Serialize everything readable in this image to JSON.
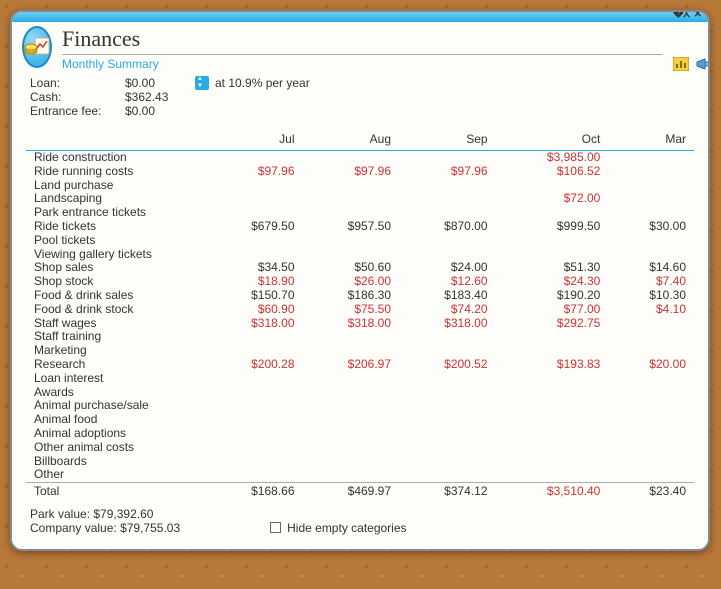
{
  "window": {
    "title": "Finances",
    "subtitle": "Monthly Summary"
  },
  "summary": {
    "loan_label": "Loan:",
    "loan_value": "$0.00",
    "loan_rate_text": "at  10.9% per year",
    "cash_label": "Cash:",
    "cash_value": "$362.43",
    "entrance_label": "Entrance fee:",
    "entrance_value": "$0.00"
  },
  "table": {
    "months": [
      "Jul",
      "Aug",
      "Sep",
      "Oct",
      "Mar"
    ],
    "rows": [
      {
        "label": "Ride construction",
        "cells": [
          null,
          null,
          null,
          {
            "v": "$3,985.00",
            "neg": true
          },
          null
        ]
      },
      {
        "label": "Ride running costs",
        "cells": [
          {
            "v": "$97.96",
            "neg": true
          },
          {
            "v": "$97.96",
            "neg": true
          },
          {
            "v": "$97.96",
            "neg": true
          },
          {
            "v": "$106.52",
            "neg": true
          },
          null
        ]
      },
      {
        "label": "Land purchase",
        "cells": [
          null,
          null,
          null,
          null,
          null
        ]
      },
      {
        "label": "Landscaping",
        "cells": [
          null,
          null,
          null,
          {
            "v": "$72.00",
            "neg": true
          },
          null
        ]
      },
      {
        "label": "Park entrance tickets",
        "cells": [
          null,
          null,
          null,
          null,
          null
        ]
      },
      {
        "label": "Ride tickets",
        "cells": [
          {
            "v": "$679.50"
          },
          {
            "v": "$957.50"
          },
          {
            "v": "$870.00"
          },
          {
            "v": "$999.50"
          },
          {
            "v": "$30.00"
          }
        ]
      },
      {
        "label": "Pool tickets",
        "cells": [
          null,
          null,
          null,
          null,
          null
        ]
      },
      {
        "label": "Viewing gallery tickets",
        "cells": [
          null,
          null,
          null,
          null,
          null
        ]
      },
      {
        "label": "Shop sales",
        "cells": [
          {
            "v": "$34.50"
          },
          {
            "v": "$50.60"
          },
          {
            "v": "$24.00"
          },
          {
            "v": "$51.30"
          },
          {
            "v": "$14.60"
          }
        ]
      },
      {
        "label": "Shop stock",
        "cells": [
          {
            "v": "$18.90",
            "neg": true
          },
          {
            "v": "$26.00",
            "neg": true
          },
          {
            "v": "$12.60",
            "neg": true
          },
          {
            "v": "$24.30",
            "neg": true
          },
          {
            "v": "$7.40",
            "neg": true
          }
        ]
      },
      {
        "label": "Food & drink sales",
        "cells": [
          {
            "v": "$150.70"
          },
          {
            "v": "$186.30"
          },
          {
            "v": "$183.40"
          },
          {
            "v": "$190.20"
          },
          {
            "v": "$10.30"
          }
        ]
      },
      {
        "label": "Food & drink stock",
        "cells": [
          {
            "v": "$60.90",
            "neg": true
          },
          {
            "v": "$75.50",
            "neg": true
          },
          {
            "v": "$74.20",
            "neg": true
          },
          {
            "v": "$77.00",
            "neg": true
          },
          {
            "v": "$4.10",
            "neg": true
          }
        ]
      },
      {
        "label": "Staff wages",
        "cells": [
          {
            "v": "$318.00",
            "neg": true
          },
          {
            "v": "$318.00",
            "neg": true
          },
          {
            "v": "$318.00",
            "neg": true
          },
          {
            "v": "$292.75",
            "neg": true
          },
          null
        ]
      },
      {
        "label": "Staff training",
        "cells": [
          null,
          null,
          null,
          null,
          null
        ]
      },
      {
        "label": "Marketing",
        "cells": [
          null,
          null,
          null,
          null,
          null
        ]
      },
      {
        "label": "Research",
        "cells": [
          {
            "v": "$200.28",
            "neg": true
          },
          {
            "v": "$206.97",
            "neg": true
          },
          {
            "v": "$200.52",
            "neg": true
          },
          {
            "v": "$193.83",
            "neg": true
          },
          {
            "v": "$20.00",
            "neg": true
          }
        ]
      },
      {
        "label": "Loan interest",
        "cells": [
          null,
          null,
          null,
          null,
          null
        ]
      },
      {
        "label": "Awards",
        "cells": [
          null,
          null,
          null,
          null,
          null
        ]
      },
      {
        "label": "Animal purchase/sale",
        "cells": [
          null,
          null,
          null,
          null,
          null
        ]
      },
      {
        "label": "Animal food",
        "cells": [
          null,
          null,
          null,
          null,
          null
        ]
      },
      {
        "label": "Animal adoptions",
        "cells": [
          null,
          null,
          null,
          null,
          null
        ]
      },
      {
        "label": "Other animal costs",
        "cells": [
          null,
          null,
          null,
          null,
          null
        ]
      },
      {
        "label": "Billboards",
        "cells": [
          null,
          null,
          null,
          null,
          null
        ]
      },
      {
        "label": "Other",
        "cells": [
          null,
          null,
          null,
          null,
          null
        ]
      }
    ],
    "total": {
      "label": "Total",
      "cells": [
        {
          "v": "$168.66"
        },
        {
          "v": "$469.97"
        },
        {
          "v": "$374.12"
        },
        {
          "v": "$3,510.40",
          "neg": true
        },
        {
          "v": "$23.40"
        }
      ]
    }
  },
  "footer": {
    "park_value_label": "Park value:",
    "park_value": "$79,392.60",
    "company_value_label": "Company value:",
    "company_value": "$79,755.03",
    "hide_empty_label": "Hide empty categories"
  }
}
